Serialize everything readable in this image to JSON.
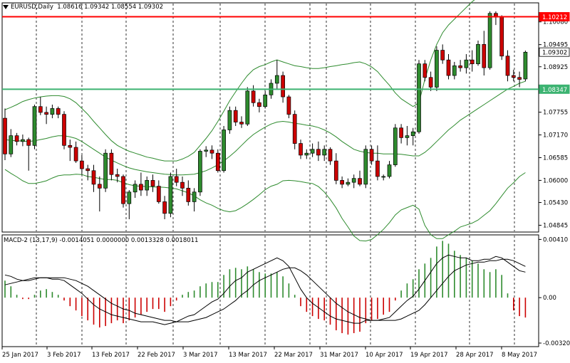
{
  "chart_data": [
    {
      "type": "candlestick",
      "symbol": "EURUSD,Daily",
      "ohlc_readout": [
        "1.08616",
        "1.09342",
        "1.08554",
        "1.09302"
      ],
      "ylim": [
        1.0467,
        1.1057
      ],
      "y_ticks": [
        "1.10080",
        "1.09495",
        "1.08925",
        "1.08340",
        "1.07755",
        "1.07170",
        "1.06585",
        "1.06000",
        "1.05430",
        "1.04845"
      ],
      "x_ticks": [
        "25 Jan 2017",
        "3 Feb 2017",
        "13 Feb 2017",
        "22 Feb 2017",
        "3 Mar 2017",
        "13 Mar 2017",
        "22 Mar 2017",
        "31 Mar 2017",
        "10 Apr 2017",
        "19 Apr 2017",
        "28 Apr 2017",
        "8 May 2017"
      ],
      "horizontal_lines": [
        {
          "label": "1.10212",
          "value": 1.10212,
          "color": "#ff0000"
        },
        {
          "label": "1.08347",
          "value": 1.08347,
          "color": "#3cb371"
        }
      ],
      "current_price_label": "1.09302",
      "current_price": 1.09302,
      "bull_color": "#2e8b2e",
      "bear_color": "#cc0000",
      "bands_color": "#2e8b2e",
      "candles": [
        [
          1.076,
          1.0785,
          1.0652,
          1.0668
        ],
        [
          1.0668,
          1.0732,
          1.066,
          1.0715
        ],
        [
          1.0715,
          1.0722,
          1.069,
          1.07
        ],
        [
          1.07,
          1.0718,
          1.0688,
          1.0705
        ],
        [
          1.0705,
          1.071,
          1.0625,
          1.069
        ],
        [
          1.069,
          1.0795,
          1.068,
          1.079
        ],
        [
          1.079,
          1.0815,
          1.0768,
          1.0775
        ],
        [
          1.0775,
          1.079,
          1.0745,
          1.077
        ],
        [
          1.077,
          1.0795,
          1.076,
          1.0785
        ],
        [
          1.0785,
          1.079,
          1.076,
          1.077
        ],
        [
          1.077,
          1.0778,
          1.068,
          1.069
        ],
        [
          1.069,
          1.0705,
          1.065,
          1.0685
        ],
        [
          1.0685,
          1.07,
          1.0645,
          1.065
        ],
        [
          1.065,
          1.0665,
          1.0615,
          1.063
        ],
        [
          1.063,
          1.064,
          1.06,
          1.0625
        ],
        [
          1.0625,
          1.064,
          1.057,
          1.059
        ],
        [
          1.059,
          1.061,
          1.052,
          1.058
        ],
        [
          1.058,
          1.068,
          1.057,
          1.067
        ],
        [
          1.067,
          1.068,
          1.06,
          1.0615
        ],
        [
          1.0615,
          1.063,
          1.0595,
          1.061
        ],
        [
          1.061,
          1.0615,
          1.053,
          1.054
        ],
        [
          1.054,
          1.0575,
          1.05,
          1.057
        ],
        [
          1.057,
          1.06,
          1.0555,
          1.059
        ],
        [
          1.059,
          1.062,
          1.056,
          1.0575
        ],
        [
          1.0575,
          1.061,
          1.056,
          1.06
        ],
        [
          1.06,
          1.0615,
          1.057,
          1.0585
        ],
        [
          1.0585,
          1.06,
          1.054,
          1.0545
        ],
        [
          1.0545,
          1.056,
          1.05,
          1.0515
        ],
        [
          1.0515,
          1.062,
          1.0505,
          1.061
        ],
        [
          1.061,
          1.063,
          1.0585,
          1.0595
        ],
        [
          1.0595,
          1.061,
          1.056,
          1.058
        ],
        [
          1.058,
          1.06,
          1.0535,
          1.0545
        ],
        [
          1.0545,
          1.058,
          1.052,
          1.057
        ],
        [
          1.057,
          1.068,
          1.056,
          1.0675
        ],
        [
          1.0675,
          1.0688,
          1.066,
          1.0678
        ],
        [
          1.0678,
          1.069,
          1.0655,
          1.067
        ],
        [
          1.067,
          1.068,
          1.062,
          1.0625
        ],
        [
          1.0625,
          1.074,
          1.062,
          1.073
        ],
        [
          1.073,
          1.079,
          1.072,
          1.078
        ],
        [
          1.078,
          1.079,
          1.074,
          1.075
        ],
        [
          1.075,
          1.0765,
          1.0735,
          1.0745
        ],
        [
          1.0745,
          1.084,
          1.074,
          1.083
        ],
        [
          1.083,
          1.0845,
          1.079,
          1.08
        ],
        [
          1.08,
          1.081,
          1.0775,
          1.079
        ],
        [
          1.079,
          1.083,
          1.0785,
          1.082
        ],
        [
          1.082,
          1.086,
          1.081,
          1.085
        ],
        [
          1.085,
          1.091,
          1.0835,
          1.087
        ],
        [
          1.087,
          1.088,
          1.08,
          1.0815
        ],
        [
          1.0815,
          1.082,
          1.076,
          1.077
        ],
        [
          1.077,
          1.078,
          1.068,
          1.0695
        ],
        [
          1.0695,
          1.0705,
          1.0655,
          1.0665
        ],
        [
          1.0665,
          1.068,
          1.0655,
          1.067
        ],
        [
          1.067,
          1.0695,
          1.066,
          1.068
        ],
        [
          1.068,
          1.07,
          1.065,
          1.0665
        ],
        [
          1.0665,
          1.069,
          1.065,
          1.068
        ],
        [
          1.068,
          1.0685,
          1.064,
          1.065
        ],
        [
          1.065,
          1.067,
          1.059,
          1.06
        ],
        [
          1.06,
          1.061,
          1.058,
          1.059
        ],
        [
          1.059,
          1.0605,
          1.0585,
          1.0595
        ],
        [
          1.0595,
          1.0615,
          1.058,
          1.0605
        ],
        [
          1.0605,
          1.0625,
          1.0585,
          1.059
        ],
        [
          1.059,
          1.069,
          1.058,
          1.068
        ],
        [
          1.068,
          1.069,
          1.064,
          1.065
        ],
        [
          1.065,
          1.069,
          1.06,
          1.061
        ],
        [
          1.061,
          1.0615,
          1.06,
          1.061
        ],
        [
          1.061,
          1.065,
          1.0605,
          1.064
        ],
        [
          1.064,
          1.0745,
          1.0635,
          1.0735
        ],
        [
          1.0735,
          1.0745,
          1.0695,
          1.071
        ],
        [
          1.071,
          1.074,
          1.069,
          1.0715
        ],
        [
          1.0715,
          1.0735,
          1.069,
          1.0725
        ],
        [
          1.0725,
          1.091,
          1.072,
          1.09
        ],
        [
          1.09,
          1.091,
          1.0855,
          1.0865
        ],
        [
          1.0865,
          1.088,
          1.083,
          1.084
        ],
        [
          1.084,
          1.0945,
          1.083,
          1.0935
        ],
        [
          1.0935,
          1.095,
          1.09,
          1.091
        ],
        [
          1.091,
          1.0925,
          1.086,
          1.087
        ],
        [
          1.087,
          1.0905,
          1.086,
          1.0895
        ],
        [
          1.0895,
          1.091,
          1.088,
          1.089
        ],
        [
          1.089,
          1.0925,
          1.0875,
          1.091
        ],
        [
          1.091,
          1.0935,
          1.088,
          1.09
        ],
        [
          1.09,
          1.096,
          1.0895,
          1.095
        ],
        [
          1.095,
          1.0985,
          1.087,
          1.089
        ],
        [
          1.089,
          1.1035,
          1.0885,
          1.103
        ],
        [
          1.103,
          1.1035,
          1.1,
          1.102
        ],
        [
          1.102,
          1.1025,
          1.091,
          1.092
        ],
        [
          1.092,
          1.0935,
          1.0855,
          1.087
        ],
        [
          1.087,
          1.0885,
          1.0855,
          1.0865
        ],
        [
          1.0865,
          1.088,
          1.084,
          1.086
        ],
        [
          1.0861,
          1.0934,
          1.0855,
          1.093
        ]
      ],
      "bollinger": {
        "upper": [
          1.0782,
          1.0788,
          1.0795,
          1.0803,
          1.0808,
          1.0812,
          1.0815,
          1.0817,
          1.0818,
          1.0818,
          1.0816,
          1.081,
          1.08,
          1.0785,
          1.077,
          1.0752,
          1.0735,
          1.0718,
          1.0702,
          1.069,
          1.0682,
          1.0675,
          1.067,
          1.0665,
          1.066,
          1.0657,
          1.0653,
          1.065,
          1.065,
          1.065,
          1.0655,
          1.0662,
          1.0672,
          1.069,
          1.0708,
          1.0728,
          1.0752,
          1.0778,
          1.0805,
          1.0828,
          1.085,
          1.087,
          1.0885,
          1.0893,
          1.0898,
          1.0905,
          1.091,
          1.0905,
          1.09,
          1.0895,
          1.0893,
          1.089,
          1.0888,
          1.0888,
          1.089,
          1.0893,
          1.0895,
          1.0898,
          1.09,
          1.0903,
          1.0905,
          1.09,
          1.0892,
          1.088,
          1.0862,
          1.0845,
          1.0825,
          1.081,
          1.08,
          1.079,
          1.08,
          1.086,
          1.091,
          1.095,
          1.098,
          1.1,
          1.1015,
          1.103,
          1.1045,
          1.106,
          1.1072,
          1.108,
          1.1088,
          1.109,
          1.109,
          1.109,
          1.109,
          1.109,
          1.109
        ],
        "middle": [
          1.0705,
          1.0703,
          1.0702,
          1.0701,
          1.07,
          1.0702,
          1.0705,
          1.0708,
          1.0712,
          1.0715,
          1.0715,
          1.0712,
          1.0708,
          1.07,
          1.069,
          1.068,
          1.067,
          1.066,
          1.0652,
          1.0645,
          1.0638,
          1.0632,
          1.0628,
          1.0625,
          1.0622,
          1.062,
          1.0618,
          1.0616,
          1.0615,
          1.0614,
          1.0614,
          1.0615,
          1.0616,
          1.062,
          1.0625,
          1.0632,
          1.064,
          1.065,
          1.0662,
          1.0675,
          1.069,
          1.0705,
          1.0718,
          1.0728,
          1.0737,
          1.0745,
          1.075,
          1.0752,
          1.075,
          1.0747,
          1.0745,
          1.0742,
          1.074,
          1.0736,
          1.073,
          1.0722,
          1.0712,
          1.07,
          1.069,
          1.068,
          1.0675,
          1.0672,
          1.067,
          1.067,
          1.0668,
          1.0668,
          1.0668,
          1.0667,
          1.0665,
          1.0663,
          1.0663,
          1.0672,
          1.0685,
          1.07,
          1.0715,
          1.073,
          1.0742,
          1.0755,
          1.0765,
          1.0775,
          1.0785,
          1.0795,
          1.0805,
          1.0815,
          1.0825,
          1.0835,
          1.0842,
          1.085,
          1.0855
        ],
        "lower": [
          1.0628,
          1.0618,
          1.0609,
          1.0599,
          1.0592,
          1.0592,
          1.0595,
          1.0599,
          1.0606,
          1.0612,
          1.0614,
          1.0614,
          1.0616,
          1.0615,
          1.061,
          1.0608,
          1.0605,
          1.0602,
          1.0602,
          1.06,
          1.0594,
          1.0589,
          1.0586,
          1.0585,
          1.0584,
          1.0583,
          1.0583,
          1.0582,
          1.058,
          1.0578,
          1.0573,
          1.0568,
          1.056,
          1.055,
          1.0542,
          1.0536,
          1.0528,
          1.0522,
          1.0519,
          1.0522,
          1.053,
          1.054,
          1.0551,
          1.0563,
          1.0576,
          1.0585,
          1.059,
          1.0599,
          1.06,
          1.0599,
          1.0597,
          1.0594,
          1.0592,
          1.0584,
          1.057,
          1.0551,
          1.0529,
          1.0502,
          1.048,
          1.0457,
          1.0445,
          1.0444,
          1.0448,
          1.046,
          1.0474,
          1.0491,
          1.0511,
          1.0524,
          1.053,
          1.0536,
          1.0526,
          1.0484,
          1.046,
          1.045,
          1.045,
          1.046,
          1.0469,
          1.048,
          1.0485,
          1.049,
          1.0498,
          1.051,
          1.0522,
          1.054,
          1.056,
          1.058,
          1.0594,
          1.061,
          1.062
        ]
      }
    },
    {
      "type": "macd",
      "label": "MACD-2 (13,17,9) -0.0014051 0.0000000 0.0013328 0.0018011",
      "ylim": [
        -0.00345,
        0.00442
      ],
      "y_ticks": [
        "0.00410",
        "0.00",
        "-0.00320"
      ],
      "pos_color": "#2e8b2e",
      "neg_color": "#cc0000",
      "histogram": [
        0.0012,
        0.0008,
        0.0002,
        -0.0001,
        -0.0001,
        0.0002,
        0.0005,
        0.0006,
        0.0004,
        0.0002,
        -0.0002,
        -0.0006,
        -0.0009,
        -0.0013,
        -0.0016,
        -0.0019,
        -0.0021,
        -0.002,
        -0.0018,
        -0.0016,
        -0.0018,
        -0.0016,
        -0.0014,
        -0.0012,
        -0.001,
        -0.0008,
        -0.0008,
        -0.001,
        -0.0006,
        -0.0002,
        0.0002,
        0.0004,
        0.0005,
        0.0008,
        0.001,
        0.0011,
        0.0011,
        0.0016,
        0.002,
        0.0021,
        0.002,
        0.0022,
        0.002,
        0.0018,
        0.0017,
        0.0017,
        0.0018,
        0.0015,
        0.001,
        0.0002,
        -0.0006,
        -0.001,
        -0.0013,
        -0.0015,
        -0.0016,
        -0.0019,
        -0.0023,
        -0.0025,
        -0.0026,
        -0.0025,
        -0.0024,
        -0.0018,
        -0.0016,
        -0.0015,
        -0.0012,
        -0.001,
        -0.0002,
        0.0005,
        0.001,
        0.0013,
        0.002,
        0.0024,
        0.0028,
        0.0036,
        0.004,
        0.0038,
        0.0033,
        0.003,
        0.0028,
        0.0026,
        0.0024,
        0.002,
        0.0018,
        0.002,
        0.0016,
        0.0003,
        -0.0009,
        -0.0013,
        -0.0014
      ],
      "macd_line": [
        0.0016,
        0.0015,
        0.0013,
        0.0012,
        0.0012,
        0.0013,
        0.0014,
        0.0014,
        0.0013,
        0.0013,
        0.0012,
        0.0009,
        0.0006,
        0.0003,
        -0.0001,
        -0.0005,
        -0.0008,
        -0.001,
        -0.0012,
        -0.0013,
        -0.0014,
        -0.0015,
        -0.0016,
        -0.0017,
        -0.0017,
        -0.0017,
        -0.0018,
        -0.0019,
        -0.0018,
        -0.0017,
        -0.0015,
        -0.0013,
        -0.0012,
        -0.0009,
        -0.0006,
        -0.0003,
        -0.0001,
        0.0003,
        0.0008,
        0.0012,
        0.0014,
        0.0018,
        0.002,
        0.0022,
        0.0024,
        0.0026,
        0.0028,
        0.0026,
        0.0022,
        0.0014,
        0.0006,
        0.0,
        -0.0004,
        -0.0007,
        -0.001,
        -0.0013,
        -0.0015,
        -0.0016,
        -0.0017,
        -0.0018,
        -0.0018,
        -0.0016,
        -0.0016,
        -0.0016,
        -0.0015,
        -0.0014,
        -0.001,
        -0.0006,
        -0.0002,
        0.0001,
        0.0006,
        0.0012,
        0.0018,
        0.0024,
        0.0028,
        0.003,
        0.0029,
        0.0028,
        0.0028,
        0.0026,
        0.0026,
        0.0027,
        0.0027,
        0.0029,
        0.0028,
        0.0025,
        0.0022,
        0.0019,
        0.0018
      ],
      "signal_line": [
        0.0009,
        0.001,
        0.0011,
        0.0012,
        0.0013,
        0.0014,
        0.0014,
        0.0014,
        0.0014,
        0.0014,
        0.0014,
        0.0013,
        0.0012,
        0.001,
        0.0008,
        0.0005,
        0.0002,
        -0.0001,
        -0.0004,
        -0.0006,
        -0.0008,
        -0.0009,
        -0.0011,
        -0.0012,
        -0.0013,
        -0.0014,
        -0.0015,
        -0.0016,
        -0.0016,
        -0.0017,
        -0.0017,
        -0.0017,
        -0.0016,
        -0.0015,
        -0.0014,
        -0.0012,
        -0.001,
        -0.0008,
        -0.0005,
        -0.0002,
        0.0002,
        0.0005,
        0.0009,
        0.0012,
        0.0014,
        0.0016,
        0.0018,
        0.002,
        0.0021,
        0.0021,
        0.0019,
        0.0016,
        0.0012,
        0.0008,
        0.0004,
        0.0,
        -0.0004,
        -0.0007,
        -0.001,
        -0.0012,
        -0.0014,
        -0.0015,
        -0.0016,
        -0.0016,
        -0.0016,
        -0.0016,
        -0.0016,
        -0.0015,
        -0.0013,
        -0.0011,
        -0.0009,
        -0.0005,
        0.0,
        0.0005,
        0.001,
        0.0015,
        0.0019,
        0.0021,
        0.0023,
        0.0024,
        0.0025,
        0.0025,
        0.0026,
        0.0026,
        0.0027,
        0.0027,
        0.0026,
        0.0024,
        0.0022
      ]
    }
  ]
}
